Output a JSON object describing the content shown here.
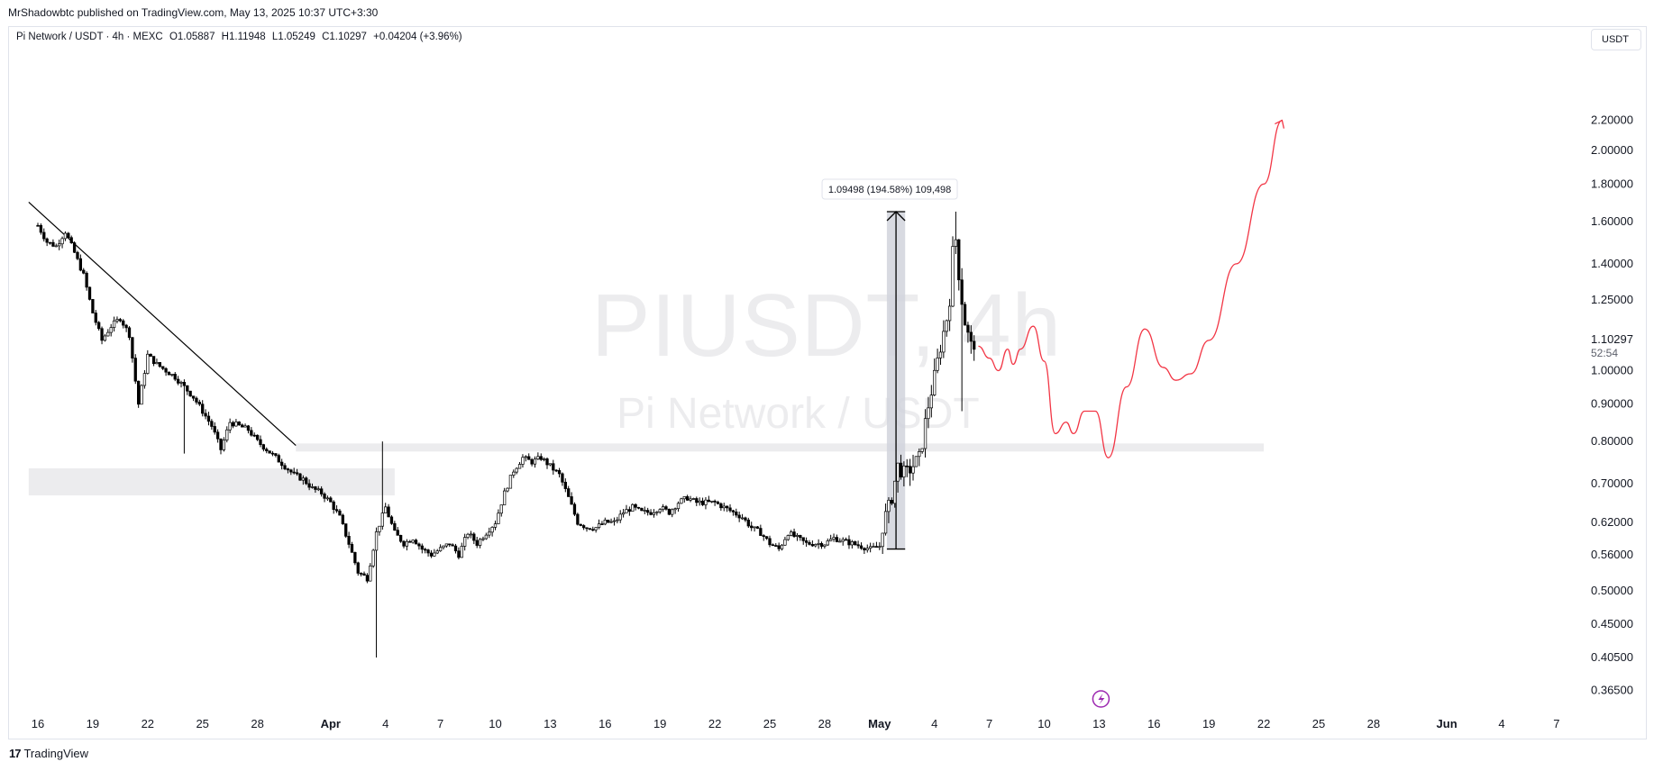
{
  "header": {
    "publisher_line": "MrShadowbtc published on TradingView.com, May 13, 2025 10:37 UTC+3:30",
    "symbol": "Pi Network / USDT · 4h · MEXC",
    "open": "O1.05887",
    "high": "H1.11948",
    "low": "L1.05249",
    "close": "C1.10297",
    "change": "+0.04204 (+3.96%)",
    "currency_button": "USDT"
  },
  "watermark": {
    "symbol": "PIUSDT, 4h",
    "name": "Pi Network / USDT"
  },
  "footer": {
    "logo_text": "TradingView",
    "logo_mark": "17"
  },
  "colors": {
    "up_candle": "#ffffff",
    "candle_outline": "#000000",
    "trendline": "#000000",
    "zone": "#ececee",
    "projection": "#f23645",
    "measure_box": "#d1d4dc",
    "lightning": "#9c27b0"
  },
  "current_price_label": "1.10297",
  "countdown": "52:54",
  "measure_label": "1.09498 (194.58%) 109,498",
  "chart_data": {
    "type": "candlestick",
    "title": "",
    "y_scale": "log",
    "ylim": [
      0.3465,
      2.42
    ],
    "y_ticks": [
      "2.20000",
      "2.00000",
      "1.80000",
      "1.60000",
      "1.40000",
      "1.25000",
      "1.10297",
      "1.00000",
      "0.90000",
      "0.80000",
      "0.70000",
      "0.62000",
      "0.56000",
      "0.50000",
      "0.45000",
      "0.40500",
      "0.36500"
    ],
    "x_ticks": [
      "16",
      "19",
      "22",
      "25",
      "28",
      "Apr",
      "4",
      "7",
      "10",
      "13",
      "16",
      "19",
      "22",
      "25",
      "28",
      "May",
      "4",
      "7",
      "10",
      "13",
      "16",
      "19",
      "22",
      "25",
      "28",
      "Jun",
      "4",
      "7"
    ],
    "x_tick_day_index": [
      0,
      3,
      6,
      9,
      12,
      16,
      19,
      22,
      25,
      28,
      31,
      34,
      37,
      40,
      43,
      46,
      49,
      52,
      55,
      58,
      61,
      64,
      67,
      70,
      73,
      77,
      80,
      83
    ],
    "price_path": [
      [
        0,
        1.58
      ],
      [
        0.5,
        1.5
      ],
      [
        1,
        1.48
      ],
      [
        1.5,
        1.55
      ],
      [
        2,
        1.45
      ],
      [
        2.5,
        1.35
      ],
      [
        3,
        1.2
      ],
      [
        3.5,
        1.1
      ],
      [
        4,
        1.15
      ],
      [
        4.5,
        1.18
      ],
      [
        5,
        1.12
      ],
      [
        5.5,
        0.9
      ],
      [
        6,
        1.05
      ],
      [
        6.5,
        1.02
      ],
      [
        7,
        1.0
      ],
      [
        7.5,
        0.98
      ],
      [
        8,
        0.95
      ],
      [
        8.5,
        0.92
      ],
      [
        9,
        0.88
      ],
      [
        9.5,
        0.84
      ],
      [
        10,
        0.78
      ],
      [
        10.5,
        0.85
      ],
      [
        11,
        0.84
      ],
      [
        11.5,
        0.83
      ],
      [
        12,
        0.8
      ],
      [
        12.5,
        0.78
      ],
      [
        13,
        0.76
      ],
      [
        13.5,
        0.74
      ],
      [
        14,
        0.72
      ],
      [
        14.5,
        0.71
      ],
      [
        15,
        0.69
      ],
      [
        15.5,
        0.68
      ],
      [
        16,
        0.66
      ],
      [
        16.5,
        0.63
      ],
      [
        17,
        0.58
      ],
      [
        17.5,
        0.53
      ],
      [
        18,
        0.52
      ],
      [
        18.5,
        0.6
      ],
      [
        19,
        0.65
      ],
      [
        19.5,
        0.6
      ],
      [
        20,
        0.58
      ],
      [
        20.5,
        0.59
      ],
      [
        21,
        0.57
      ],
      [
        21.5,
        0.56
      ],
      [
        22,
        0.57
      ],
      [
        22.5,
        0.58
      ],
      [
        23,
        0.56
      ],
      [
        23.5,
        0.6
      ],
      [
        24,
        0.58
      ],
      [
        24.5,
        0.6
      ],
      [
        25,
        0.62
      ],
      [
        25.5,
        0.68
      ],
      [
        26,
        0.73
      ],
      [
        26.5,
        0.76
      ],
      [
        27,
        0.75
      ],
      [
        27.5,
        0.76
      ],
      [
        28,
        0.74
      ],
      [
        28.5,
        0.72
      ],
      [
        29,
        0.67
      ],
      [
        29.5,
        0.62
      ],
      [
        30,
        0.61
      ],
      [
        30.5,
        0.61
      ],
      [
        31,
        0.62
      ],
      [
        31.5,
        0.62
      ],
      [
        32,
        0.64
      ],
      [
        32.5,
        0.65
      ],
      [
        33,
        0.64
      ],
      [
        33.5,
        0.64
      ],
      [
        34,
        0.65
      ],
      [
        34.5,
        0.64
      ],
      [
        35,
        0.66
      ],
      [
        35.5,
        0.67
      ],
      [
        36,
        0.66
      ],
      [
        36.5,
        0.66
      ],
      [
        37,
        0.66
      ],
      [
        37.5,
        0.65
      ],
      [
        38,
        0.64
      ],
      [
        38.5,
        0.63
      ],
      [
        39,
        0.61
      ],
      [
        39.5,
        0.6
      ],
      [
        40,
        0.58
      ],
      [
        40.5,
        0.57
      ],
      [
        41,
        0.6
      ],
      [
        41.5,
        0.59
      ],
      [
        42,
        0.58
      ],
      [
        42.5,
        0.58
      ],
      [
        43,
        0.58
      ],
      [
        43.5,
        0.59
      ],
      [
        44,
        0.585
      ],
      [
        44.5,
        0.58
      ],
      [
        45,
        0.575
      ],
      [
        45.5,
        0.57
      ],
      [
        46,
        0.575
      ],
      [
        46.2,
        0.62
      ],
      [
        46.6,
        0.66
      ],
      [
        47,
        0.74
      ],
      [
        47.4,
        0.72
      ],
      [
        47.8,
        0.74
      ],
      [
        48.2,
        0.76
      ],
      [
        48.6,
        0.88
      ],
      [
        49,
        0.98
      ],
      [
        49.4,
        1.1
      ],
      [
        49.8,
        1.22
      ],
      [
        50.1,
        1.58
      ],
      [
        50.4,
        1.3
      ],
      [
        50.7,
        1.15
      ],
      [
        51,
        1.08
      ],
      [
        51.3,
        1.1
      ]
    ],
    "candle_extremes": [
      {
        "day": 8.0,
        "low": 0.77
      },
      {
        "day": 18.8,
        "high": 0.8
      },
      {
        "day": 18.5,
        "low": 0.405
      },
      {
        "day": 50.1,
        "high": 1.65
      },
      {
        "day": 50.5,
        "low": 0.88
      }
    ],
    "trendline": [
      [
        -0.5,
        1.7
      ],
      [
        14.1,
        0.79
      ]
    ],
    "zones": [
      {
        "x0": -0.5,
        "x1": 19.5,
        "top": 0.735,
        "bottom": 0.675
      },
      {
        "x0": 14.1,
        "x1": 67.0,
        "top": 0.795,
        "bottom": 0.775
      }
    ],
    "measure": {
      "x0": 46.4,
      "x1": 47.4,
      "from": 0.57,
      "to": 1.65
    },
    "projection": [
      [
        51.4,
        1.08
      ],
      [
        52.0,
        1.04
      ],
      [
        52.5,
        1.0
      ],
      [
        53.0,
        1.07
      ],
      [
        53.3,
        1.02
      ],
      [
        53.7,
        1.07
      ],
      [
        54.4,
        1.15
      ],
      [
        55.0,
        1.03
      ],
      [
        55.6,
        0.82
      ],
      [
        56.2,
        0.85
      ],
      [
        56.6,
        0.82
      ],
      [
        57.2,
        0.88
      ],
      [
        57.8,
        0.88
      ],
      [
        58.5,
        0.76
      ],
      [
        59.5,
        0.95
      ],
      [
        60.5,
        1.14
      ],
      [
        61.5,
        1.01
      ],
      [
        62.2,
        0.97
      ],
      [
        63.0,
        0.99
      ],
      [
        64.0,
        1.1
      ],
      [
        65.5,
        1.4
      ],
      [
        67.0,
        1.8
      ],
      [
        68.0,
        2.2
      ]
    ]
  }
}
